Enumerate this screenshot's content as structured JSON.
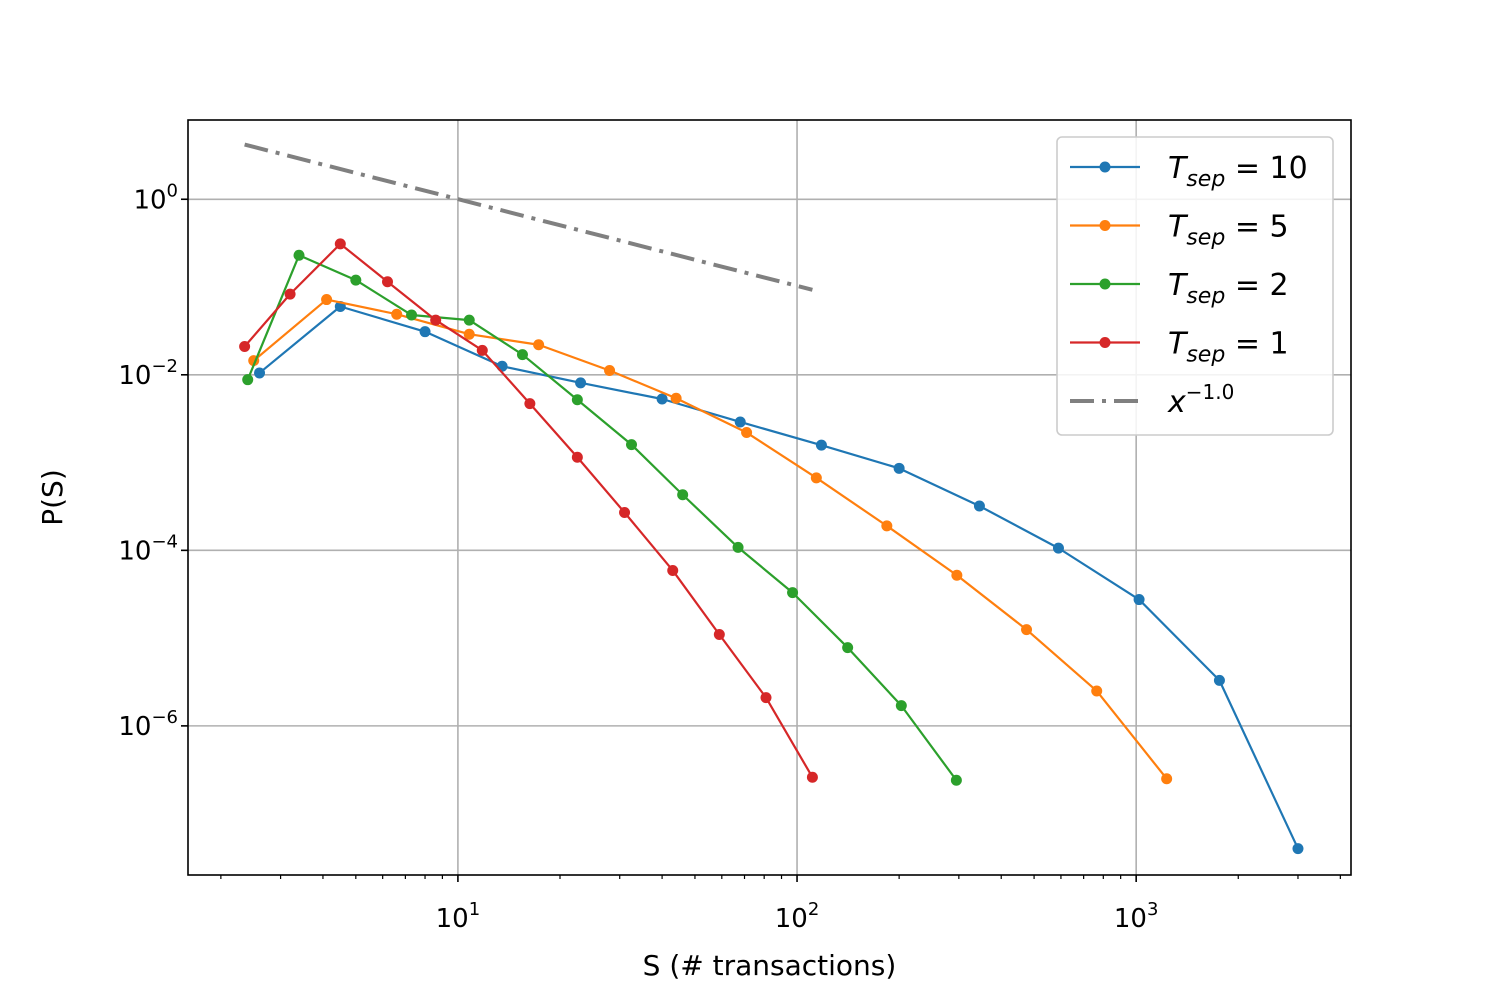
{
  "chart_data": {
    "type": "line",
    "title": "",
    "xlabel": "S (# transactions)",
    "ylabel": "P(S)",
    "xscale": "log",
    "yscale": "log",
    "xlim": [
      1.6,
      4300
    ],
    "ylim": [
      2e-08,
      8
    ],
    "grid": true,
    "legend_position": "top-right",
    "x_ticks": [
      {
        "value": 10,
        "base": "10",
        "exp": "1"
      },
      {
        "value": 100,
        "base": "10",
        "exp": "2"
      },
      {
        "value": 1000,
        "base": "10",
        "exp": "3"
      }
    ],
    "y_ticks": [
      {
        "value": 1,
        "base": "10",
        "exp": "0"
      },
      {
        "value": 0.01,
        "base": "10",
        "exp": "−2"
      },
      {
        "value": 0.0001,
        "base": "10",
        "exp": "−4"
      },
      {
        "value": 1e-06,
        "base": "10",
        "exp": "−6"
      }
    ],
    "series": [
      {
        "name_main": "T",
        "name_sub": "sep",
        "name_rest": " = 10",
        "color": "#1f77b4",
        "x": [
          2.6,
          4.5,
          8,
          13.5,
          23,
          40,
          68,
          118,
          200,
          345,
          590,
          1020,
          1760,
          3000
        ],
        "y": [
          0.0105,
          0.06,
          0.031,
          0.0125,
          0.0081,
          0.0053,
          0.0029,
          0.00158,
          0.00086,
          0.00032,
          0.000106,
          2.75e-05,
          3.3e-06,
          4e-08
        ]
      },
      {
        "name_main": "T",
        "name_sub": "sep",
        "name_rest": " = 5",
        "color": "#ff7f0e",
        "x": [
          2.5,
          4.1,
          6.6,
          10.8,
          17.3,
          28,
          44,
          71,
          114,
          184,
          296,
          475,
          765,
          1230
        ],
        "y": [
          0.0145,
          0.072,
          0.049,
          0.029,
          0.022,
          0.0112,
          0.0054,
          0.0022,
          0.00067,
          0.00019,
          5.2e-05,
          1.25e-05,
          2.5e-06,
          2.5e-07
        ]
      },
      {
        "name_main": "T",
        "name_sub": "sep",
        "name_rest": " = 2",
        "color": "#2ca02c",
        "x": [
          2.4,
          3.4,
          5,
          7.3,
          10.8,
          15.5,
          22.5,
          32.5,
          46,
          67,
          97,
          141,
          203,
          295
        ],
        "y": [
          0.0088,
          0.23,
          0.12,
          0.048,
          0.042,
          0.017,
          0.0052,
          0.0016,
          0.00043,
          0.000108,
          3.3e-05,
          7.8e-06,
          1.7e-06,
          2.4e-07
        ]
      },
      {
        "name_main": "T",
        "name_sub": "sep",
        "name_rest": " = 1",
        "color": "#d62728",
        "x": [
          2.35,
          3.2,
          4.5,
          6.2,
          8.6,
          11.8,
          16.3,
          22.5,
          31,
          43,
          59,
          81,
          111
        ],
        "y": [
          0.021,
          0.083,
          0.31,
          0.115,
          0.042,
          0.019,
          0.0047,
          0.00115,
          0.00027,
          5.9e-05,
          1.1e-05,
          2.1e-06,
          2.6e-07
        ]
      }
    ],
    "reference_line": {
      "name_base": "x",
      "name_exp": "−1.0",
      "color": "#808080",
      "x": [
        2.35,
        111
      ],
      "y": [
        4.2,
        0.093
      ]
    }
  }
}
